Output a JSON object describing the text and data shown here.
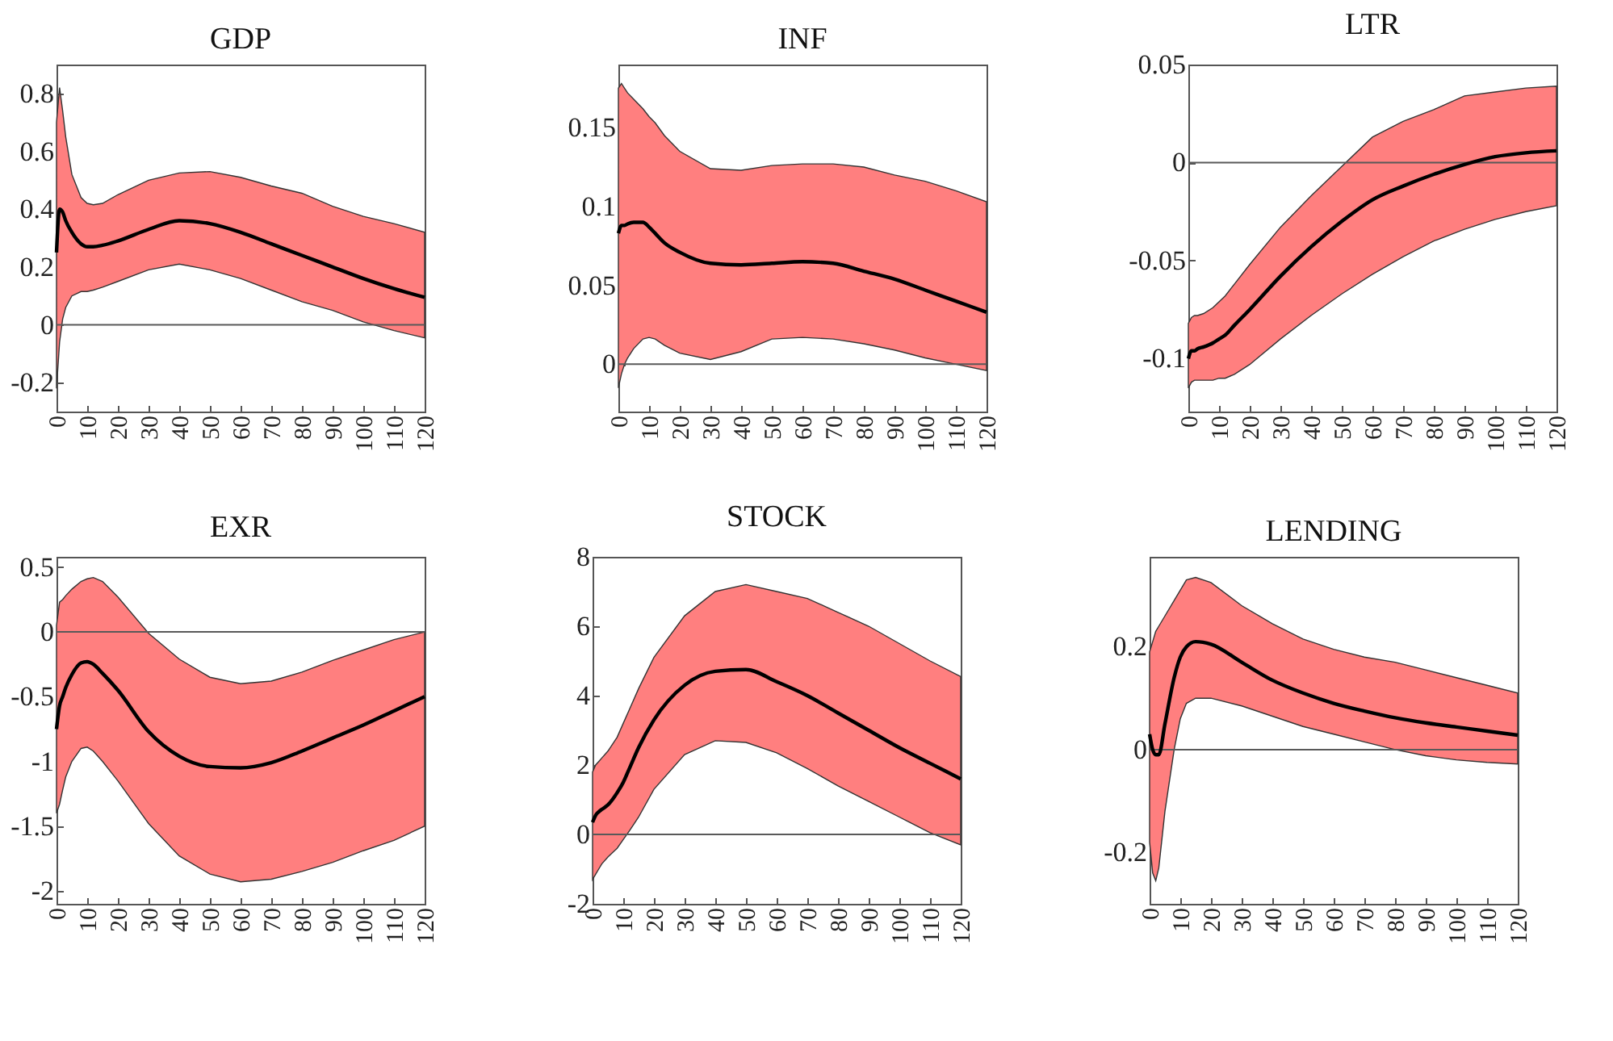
{
  "chart_data": [
    {
      "type": "line",
      "title": "GDP",
      "x": [
        0,
        1,
        2,
        3,
        5,
        8,
        10,
        12,
        15,
        20,
        30,
        40,
        50,
        60,
        70,
        80,
        90,
        100,
        110,
        120
      ],
      "xlim": [
        0,
        120
      ],
      "xticks": [
        0,
        10,
        20,
        30,
        40,
        50,
        60,
        70,
        80,
        90,
        100,
        110,
        120
      ],
      "ylim": [
        -0.3,
        0.9
      ],
      "yticks": [
        -0.2,
        0,
        0.2,
        0.4,
        0.6,
        0.8
      ],
      "grid": false,
      "series": [
        {
          "color": "#000000",
          "values": [
            0.25,
            0.4,
            0.39,
            0.36,
            0.32,
            0.28,
            0.27,
            0.27,
            0.275,
            0.29,
            0.33,
            0.36,
            0.35,
            0.32,
            0.28,
            0.24,
            0.2,
            0.16,
            0.125,
            0.095
          ],
          "upper": [
            0.7,
            0.82,
            0.74,
            0.65,
            0.52,
            0.44,
            0.42,
            0.415,
            0.42,
            0.45,
            0.5,
            0.525,
            0.53,
            0.51,
            0.48,
            0.455,
            0.41,
            0.375,
            0.35,
            0.32
          ],
          "lower": [
            -0.22,
            -0.06,
            0.02,
            0.06,
            0.1,
            0.115,
            0.115,
            0.12,
            0.13,
            0.15,
            0.19,
            0.21,
            0.19,
            0.16,
            0.12,
            0.08,
            0.05,
            0.01,
            -0.02,
            -0.045
          ]
        }
      ],
      "ref_lines": [
        {
          "axis": "y",
          "value": 0,
          "color": "#595959"
        }
      ]
    },
    {
      "type": "line",
      "title": "INF",
      "x": [
        0,
        1,
        2,
        3,
        5,
        8,
        10,
        12,
        15,
        20,
        30,
        40,
        50,
        60,
        70,
        80,
        90,
        100,
        110,
        120
      ],
      "xlim": [
        0,
        120
      ],
      "xticks": [
        0,
        10,
        20,
        30,
        40,
        50,
        60,
        70,
        80,
        90,
        100,
        110,
        120
      ],
      "ylim": [
        -0.03,
        0.19
      ],
      "yticks": [
        0,
        0.05,
        0.1,
        0.15
      ],
      "grid": false,
      "series": [
        {
          "color": "#000000",
          "values": [
            0.083,
            0.088,
            0.088,
            0.089,
            0.09,
            0.09,
            0.087,
            0.083,
            0.077,
            0.071,
            0.064,
            0.063,
            0.064,
            0.065,
            0.064,
            0.059,
            0.054,
            0.047,
            0.04,
            0.033
          ],
          "upper": [
            0.175,
            0.178,
            0.175,
            0.172,
            0.168,
            0.162,
            0.157,
            0.153,
            0.145,
            0.135,
            0.124,
            0.123,
            0.126,
            0.127,
            0.127,
            0.125,
            0.12,
            0.116,
            0.11,
            0.103
          ],
          "lower": [
            -0.015,
            -0.006,
            0.0,
            0.004,
            0.01,
            0.016,
            0.017,
            0.016,
            0.012,
            0.007,
            0.003,
            0.008,
            0.016,
            0.017,
            0.016,
            0.013,
            0.009,
            0.004,
            0.0,
            -0.004
          ]
        }
      ],
      "ref_lines": [
        {
          "axis": "y",
          "value": 0,
          "color": "#595959"
        }
      ]
    },
    {
      "type": "line",
      "title": "LTR",
      "x": [
        0,
        1,
        2,
        3,
        5,
        8,
        10,
        12,
        15,
        20,
        30,
        40,
        50,
        60,
        70,
        80,
        90,
        100,
        110,
        120
      ],
      "xlim": [
        0,
        120
      ],
      "xticks": [
        0,
        10,
        20,
        30,
        40,
        50,
        60,
        70,
        80,
        90,
        100,
        110,
        120
      ],
      "ylim": [
        -0.127,
        0.05
      ],
      "yticks": [
        -0.1,
        -0.05,
        0,
        0.05
      ],
      "grid": false,
      "series": [
        {
          "color": "#000000",
          "values": [
            -0.1,
            -0.096,
            -0.096,
            -0.095,
            -0.094,
            -0.092,
            -0.09,
            -0.088,
            -0.083,
            -0.075,
            -0.058,
            -0.043,
            -0.03,
            -0.019,
            -0.012,
            -0.006,
            -0.001,
            0.003,
            0.005,
            0.006
          ],
          "upper": [
            -0.082,
            -0.079,
            -0.078,
            -0.078,
            -0.077,
            -0.074,
            -0.071,
            -0.068,
            -0.062,
            -0.052,
            -0.033,
            -0.017,
            -0.002,
            0.013,
            0.021,
            0.027,
            0.034,
            0.036,
            0.038,
            0.039
          ],
          "lower": [
            -0.115,
            -0.112,
            -0.111,
            -0.111,
            -0.111,
            -0.111,
            -0.11,
            -0.11,
            -0.108,
            -0.103,
            -0.09,
            -0.078,
            -0.067,
            -0.057,
            -0.048,
            -0.04,
            -0.034,
            -0.029,
            -0.025,
            -0.022
          ]
        }
      ],
      "ref_lines": [
        {
          "axis": "y",
          "value": 0,
          "color": "#595959"
        }
      ]
    },
    {
      "type": "line",
      "title": "EXR",
      "x": [
        0,
        1,
        2,
        3,
        5,
        8,
        10,
        12,
        15,
        20,
        30,
        40,
        50,
        60,
        70,
        80,
        90,
        100,
        110,
        120
      ],
      "xlim": [
        0,
        120
      ],
      "xticks": [
        0,
        10,
        20,
        30,
        40,
        50,
        60,
        70,
        80,
        90,
        100,
        110,
        120
      ],
      "ylim": [
        -2.1,
        0.58
      ],
      "yticks": [
        -2,
        -1.5,
        -1,
        -0.5,
        0,
        0.5
      ],
      "grid": false,
      "series": [
        {
          "color": "#000000",
          "values": [
            -0.75,
            -0.57,
            -0.5,
            -0.43,
            -0.33,
            -0.24,
            -0.23,
            -0.25,
            -0.32,
            -0.45,
            -0.77,
            -0.96,
            -1.04,
            -1.05,
            -1.01,
            -0.92,
            -0.82,
            -0.72,
            -0.61,
            -0.5
          ],
          "upper": [
            0.05,
            0.23,
            0.25,
            0.28,
            0.33,
            0.39,
            0.41,
            0.42,
            0.39,
            0.27,
            -0.01,
            -0.21,
            -0.35,
            -0.4,
            -0.38,
            -0.31,
            -0.22,
            -0.14,
            -0.06,
            0.0
          ],
          "lower": [
            -1.4,
            -1.33,
            -1.22,
            -1.12,
            -1.0,
            -0.9,
            -0.89,
            -0.92,
            -1.0,
            -1.15,
            -1.48,
            -1.73,
            -1.87,
            -1.93,
            -1.91,
            -1.85,
            -1.78,
            -1.69,
            -1.61,
            -1.5
          ]
        }
      ],
      "ref_lines": [
        {
          "axis": "y",
          "value": 0,
          "color": "#595959"
        }
      ]
    },
    {
      "type": "line",
      "title": "STOCK",
      "x": [
        0,
        1,
        2,
        3,
        5,
        8,
        10,
        12,
        15,
        20,
        30,
        40,
        50,
        60,
        70,
        80,
        90,
        100,
        110,
        120
      ],
      "xlim": [
        0,
        120
      ],
      "xticks": [
        0,
        10,
        20,
        30,
        40,
        50,
        60,
        70,
        80,
        90,
        100,
        110,
        120
      ],
      "ylim": [
        -2,
        8
      ],
      "yticks": [
        -2,
        0,
        2,
        4,
        6,
        8
      ],
      "grid": false,
      "series": [
        {
          "color": "#000000",
          "values": [
            0.35,
            0.55,
            0.65,
            0.72,
            0.85,
            1.2,
            1.5,
            1.9,
            2.5,
            3.3,
            4.3,
            4.7,
            4.75,
            4.4,
            4.0,
            3.5,
            3.0,
            2.5,
            2.05,
            1.6
          ],
          "upper": [
            1.8,
            2.0,
            2.1,
            2.2,
            2.4,
            2.8,
            3.2,
            3.6,
            4.2,
            5.1,
            6.3,
            7.0,
            7.2,
            7.0,
            6.8,
            6.4,
            6.0,
            5.5,
            5.0,
            4.55
          ],
          "lower": [
            -1.3,
            -1.15,
            -1.0,
            -0.85,
            -0.65,
            -0.4,
            -0.15,
            0.1,
            0.5,
            1.3,
            2.3,
            2.7,
            2.65,
            2.35,
            1.9,
            1.4,
            0.95,
            0.5,
            0.05,
            -0.3
          ]
        }
      ],
      "ref_lines": [
        {
          "axis": "y",
          "value": 0,
          "color": "#595959"
        }
      ]
    },
    {
      "type": "line",
      "title": "LENDING",
      "x": [
        0,
        1,
        2,
        3,
        5,
        8,
        10,
        12,
        15,
        20,
        30,
        40,
        50,
        60,
        70,
        80,
        90,
        100,
        110,
        120
      ],
      "xlim": [
        0,
        120
      ],
      "xticks": [
        0,
        10,
        20,
        30,
        40,
        50,
        60,
        70,
        80,
        90,
        100,
        110,
        120
      ],
      "ylim": [
        -0.3,
        0.375
      ],
      "yticks": [
        -0.2,
        0,
        0.2
      ],
      "grid": false,
      "series": [
        {
          "color": "#000000",
          "values": [
            0.03,
            0.0,
            -0.01,
            -0.01,
            0.05,
            0.14,
            0.18,
            0.2,
            0.21,
            0.205,
            0.17,
            0.135,
            0.11,
            0.09,
            0.075,
            0.062,
            0.052,
            0.044,
            0.036,
            0.028
          ],
          "upper": [
            0.19,
            0.21,
            0.23,
            0.24,
            0.26,
            0.29,
            0.31,
            0.33,
            0.335,
            0.325,
            0.28,
            0.245,
            0.215,
            0.195,
            0.18,
            0.17,
            0.155,
            0.14,
            0.125,
            0.11
          ],
          "lower": [
            -0.18,
            -0.24,
            -0.255,
            -0.23,
            -0.12,
            0.0,
            0.06,
            0.09,
            0.1,
            0.1,
            0.085,
            0.065,
            0.045,
            0.03,
            0.015,
            0.0,
            -0.012,
            -0.02,
            -0.025,
            -0.028
          ]
        }
      ],
      "ref_lines": [
        {
          "axis": "y",
          "value": 0,
          "color": "#595959"
        }
      ]
    }
  ]
}
